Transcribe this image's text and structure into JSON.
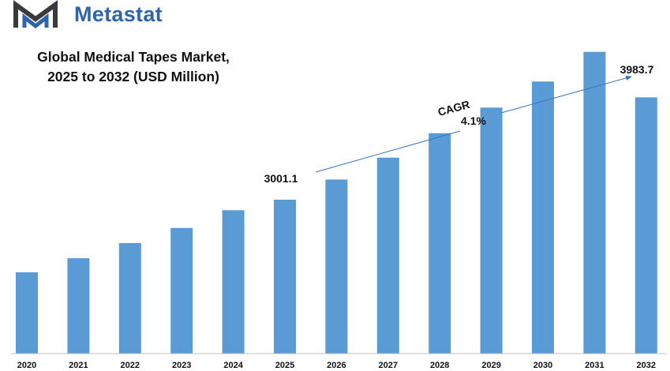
{
  "brand": {
    "name": "Metastat",
    "color": "#2f64ad"
  },
  "chart_data": {
    "type": "bar",
    "title_line1": "Global Medical Tapes Market,",
    "title_line2": "2025 to 2032 (USD Million)",
    "categories": [
      "2020",
      "2021",
      "2022",
      "2023",
      "2024",
      "2025",
      "2026",
      "2027",
      "2028",
      "2029",
      "2030",
      "2031",
      "2032"
    ],
    "values": [
      2305,
      2440,
      2585,
      2730,
      2900,
      3001.1,
      3195,
      3405,
      3640,
      3885,
      4135,
      4420,
      3983.7
    ],
    "bar_color": "#5b9bd5",
    "grid": false,
    "legend": "none",
    "annotations": {
      "start_label": "3001.1",
      "end_label": "3983.7",
      "cagr_label": "CAGR",
      "cagr_value": "4.1%"
    }
  }
}
